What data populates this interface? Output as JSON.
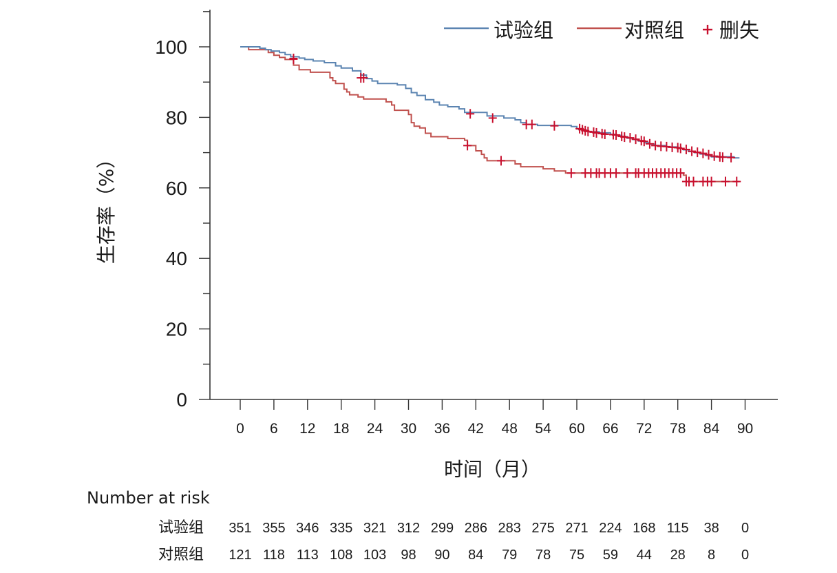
{
  "chart_data": {
    "type": "line",
    "subtype": "kaplan-meier",
    "ylabel": "生存率（%）",
    "xlabel": "时间（月）",
    "ylim": [
      0,
      100
    ],
    "xlim": [
      0,
      90
    ],
    "yticks": [
      0,
      20,
      40,
      60,
      80,
      100
    ],
    "xticks": [
      0,
      6,
      12,
      18,
      24,
      30,
      36,
      42,
      48,
      54,
      60,
      66,
      72,
      78,
      84,
      90
    ],
    "legend": {
      "position": "top-right",
      "censor_label": "删失"
    },
    "colors": {
      "trial": "#5b84b1",
      "control": "#c0504d",
      "censor": "#c8102e"
    },
    "series": [
      {
        "name": "试验组",
        "color": "#5b84b1",
        "steps": [
          [
            0,
            100
          ],
          [
            2.5,
            100
          ],
          [
            3.5,
            99.6
          ],
          [
            4.5,
            99.2
          ],
          [
            5.5,
            98.8
          ],
          [
            7,
            98.4
          ],
          [
            8,
            97.8
          ],
          [
            9,
            97.2
          ],
          [
            10.5,
            96.8
          ],
          [
            11.5,
            96.4
          ],
          [
            13,
            96
          ],
          [
            15,
            95.5
          ],
          [
            17,
            94.6
          ],
          [
            18,
            94
          ],
          [
            20,
            93.2
          ],
          [
            21.5,
            92
          ],
          [
            22.5,
            91
          ],
          [
            23.5,
            90.3
          ],
          [
            24.5,
            89.6
          ],
          [
            28,
            89.2
          ],
          [
            29.5,
            88.2
          ],
          [
            30.5,
            87
          ],
          [
            31.5,
            86.2
          ],
          [
            33,
            85
          ],
          [
            34.5,
            84.3
          ],
          [
            35.5,
            83.5
          ],
          [
            37,
            83
          ],
          [
            39,
            82.4
          ],
          [
            40,
            81.4
          ],
          [
            44,
            80.4
          ],
          [
            47,
            79.8
          ],
          [
            49,
            79.3
          ],
          [
            50,
            78.5
          ],
          [
            51,
            78
          ],
          [
            53,
            77.7
          ],
          [
            59,
            77.4
          ],
          [
            60,
            76.7
          ],
          [
            61,
            76.3
          ],
          [
            62,
            75.9
          ],
          [
            64,
            75.6
          ],
          [
            66,
            75.2
          ],
          [
            67,
            74.9
          ],
          [
            68,
            74.5
          ],
          [
            69,
            74.1
          ],
          [
            70,
            73.7
          ],
          [
            71,
            73.3
          ],
          [
            72,
            72.8
          ],
          [
            73,
            72.4
          ],
          [
            74,
            72
          ],
          [
            76,
            71.6
          ],
          [
            78,
            71.2
          ],
          [
            79,
            70.8
          ],
          [
            80,
            70.3
          ],
          [
            81,
            70
          ],
          [
            82,
            69.6
          ],
          [
            83,
            69.2
          ],
          [
            84,
            68.8
          ],
          [
            88,
            68.5
          ],
          [
            89,
            68.5
          ]
        ],
        "censored": [
          [
            9.5,
            96.7
          ],
          [
            22,
            91.2
          ],
          [
            41,
            81
          ],
          [
            45,
            79.8
          ],
          [
            51,
            78
          ],
          [
            52,
            78
          ],
          [
            56,
            77.6
          ],
          [
            60.5,
            76.8
          ],
          [
            61,
            76.5
          ],
          [
            61.5,
            76.2
          ],
          [
            62,
            76
          ],
          [
            63,
            75.8
          ],
          [
            63.5,
            75.6
          ],
          [
            64.5,
            75.4
          ],
          [
            65,
            75.2
          ],
          [
            66.5,
            75.1
          ],
          [
            67,
            75
          ],
          [
            68,
            74.6
          ],
          [
            68.5,
            74.4
          ],
          [
            69.5,
            74.2
          ],
          [
            70.5,
            73.8
          ],
          [
            71.5,
            73.4
          ],
          [
            72,
            73.2
          ],
          [
            73,
            72.5
          ],
          [
            74,
            72
          ],
          [
            75,
            71.8
          ],
          [
            76,
            71.7
          ],
          [
            77,
            71.5
          ],
          [
            78,
            71.4
          ],
          [
            78.5,
            71.2
          ],
          [
            79.5,
            70.9
          ],
          [
            80.5,
            70.4
          ],
          [
            81.5,
            70.1
          ],
          [
            82.5,
            69.8
          ],
          [
            83.5,
            69.4
          ],
          [
            84.5,
            69
          ],
          [
            85.5,
            68.8
          ],
          [
            86,
            68.7
          ],
          [
            87.5,
            68.6
          ]
        ],
        "risk": [
          351,
          355,
          346,
          335,
          321,
          312,
          299,
          286,
          283,
          275,
          271,
          224,
          168,
          115,
          38,
          0
        ]
      },
      {
        "name": "对照组",
        "color": "#c0504d",
        "steps": [
          [
            0,
            100
          ],
          [
            1.5,
            99.2
          ],
          [
            5,
            98.4
          ],
          [
            6,
            97.6
          ],
          [
            7,
            97
          ],
          [
            8,
            96.4
          ],
          [
            9.5,
            94.8
          ],
          [
            10.5,
            93.5
          ],
          [
            12.5,
            92.8
          ],
          [
            16,
            91.2
          ],
          [
            16.5,
            90.4
          ],
          [
            17,
            89.6
          ],
          [
            18.5,
            88
          ],
          [
            19,
            87.2
          ],
          [
            19.5,
            86.4
          ],
          [
            21,
            85.8
          ],
          [
            22,
            85.2
          ],
          [
            26,
            84.4
          ],
          [
            27,
            83.5
          ],
          [
            27.5,
            82
          ],
          [
            30,
            80.8
          ],
          [
            30.5,
            78.5
          ],
          [
            31,
            77.5
          ],
          [
            32,
            77
          ],
          [
            33,
            75.5
          ],
          [
            34,
            74.5
          ],
          [
            37,
            74
          ],
          [
            40,
            73.5
          ],
          [
            40.5,
            72
          ],
          [
            42,
            70.5
          ],
          [
            43,
            69.5
          ],
          [
            43.5,
            68.5
          ],
          [
            44,
            67.7
          ],
          [
            49,
            66.8
          ],
          [
            50,
            66
          ],
          [
            54,
            65.4
          ],
          [
            56,
            64.8
          ],
          [
            58,
            64.2
          ],
          [
            79,
            63.6
          ],
          [
            79.5,
            61.8
          ],
          [
            89,
            61.8
          ]
        ],
        "censored": [
          [
            9.5,
            96.5
          ],
          [
            21.5,
            91.2
          ],
          [
            40.5,
            72
          ],
          [
            46.5,
            67.7
          ],
          [
            59,
            64.2
          ],
          [
            61.5,
            64.2
          ],
          [
            62.5,
            64.2
          ],
          [
            63.5,
            64.2
          ],
          [
            64,
            64.2
          ],
          [
            65,
            64.2
          ],
          [
            66,
            64.2
          ],
          [
            67,
            64.2
          ],
          [
            69,
            64.2
          ],
          [
            70.5,
            64.2
          ],
          [
            71,
            64.2
          ],
          [
            72,
            64.2
          ],
          [
            72.8,
            64.2
          ],
          [
            73.5,
            64.2
          ],
          [
            74.2,
            64.2
          ],
          [
            75,
            64.2
          ],
          [
            75.7,
            64.2
          ],
          [
            76.4,
            64.2
          ],
          [
            77.1,
            64.2
          ],
          [
            77.8,
            64.2
          ],
          [
            78.5,
            64.2
          ],
          [
            79.5,
            61.8
          ],
          [
            80,
            61.8
          ],
          [
            80.8,
            61.8
          ],
          [
            82.5,
            61.8
          ],
          [
            83.3,
            61.8
          ],
          [
            84,
            61.8
          ],
          [
            86.5,
            61.8
          ],
          [
            88.5,
            61.8
          ]
        ],
        "risk": [
          121,
          118,
          113,
          108,
          103,
          98,
          90,
          84,
          79,
          78,
          75,
          59,
          44,
          28,
          8,
          0
        ]
      }
    ],
    "risk_table": {
      "title": "Number at risk"
    }
  }
}
